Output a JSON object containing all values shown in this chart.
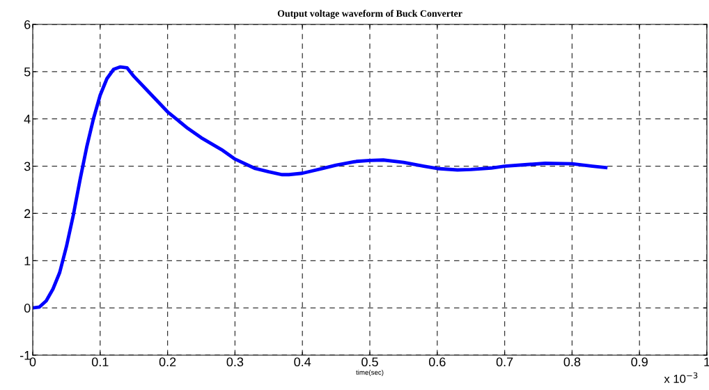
{
  "chart_data": {
    "type": "line",
    "title": "Output voltage waveform of Buck Converter",
    "xlabel": "time(sec)",
    "annotations": [
      "x 10$^{−3}$"
    ],
    "series": [
      {
        "color": "#0000ff",
        "x": [
          0,
          0.01,
          0.02,
          0.03,
          0.04,
          0.05,
          0.06,
          0.07,
          0.08,
          0.09,
          0.1,
          0.11,
          0.12,
          0.13,
          0.14,
          0.15,
          0.17,
          0.2,
          0.23,
          0.25,
          0.28,
          0.3,
          0.33,
          0.35,
          0.37,
          0.38,
          0.4,
          0.43,
          0.45,
          0.48,
          0.5,
          0.52,
          0.55,
          0.58,
          0.6,
          0.63,
          0.65,
          0.68,
          0.7,
          0.73,
          0.76,
          0.8,
          0.83,
          0.85
        ],
        "values": [
          0,
          0.02,
          0.15,
          0.4,
          0.75,
          1.3,
          1.95,
          2.7,
          3.4,
          4.0,
          4.5,
          4.85,
          5.05,
          5.1,
          5.08,
          4.9,
          4.6,
          4.15,
          3.8,
          3.6,
          3.35,
          3.15,
          2.95,
          2.88,
          2.82,
          2.82,
          2.85,
          2.95,
          3.02,
          3.1,
          3.12,
          3.13,
          3.08,
          3.0,
          2.95,
          2.92,
          2.93,
          2.96,
          3.0,
          3.03,
          3.06,
          3.05,
          3.0,
          2.97
        ]
      }
    ],
    "xlim": [
      0,
      1
    ],
    "xticks": [
      0,
      0.1,
      0.2,
      0.3,
      0.4,
      0.5,
      0.6,
      0.7,
      0.8,
      0.9,
      1
    ],
    "ylim": [
      -1,
      6
    ],
    "yticks": [
      -1,
      0,
      1,
      2,
      3,
      4,
      5,
      6
    ],
    "grid": true,
    "line_style": "solid",
    "marker": "none"
  }
}
